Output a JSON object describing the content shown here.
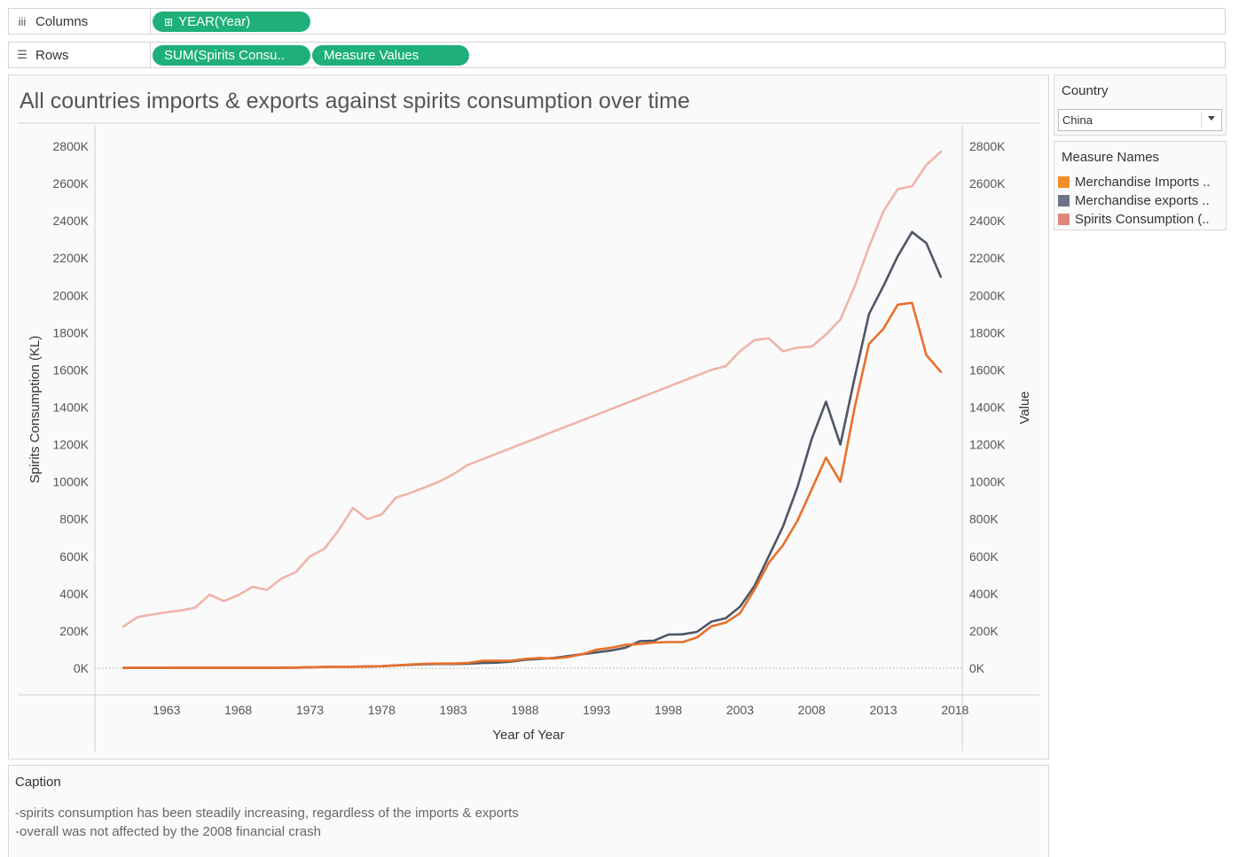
{
  "shelves": {
    "columns": {
      "label": "Columns",
      "icon": "iii",
      "pills": [
        "YEAR(Year)"
      ]
    },
    "rows": {
      "label": "Rows",
      "icon": "☰",
      "pills": [
        "SUM(Spirits Consu..",
        "Measure Values"
      ]
    }
  },
  "filter": {
    "title": "Country",
    "selected": "China"
  },
  "legend": {
    "title": "Measure Names",
    "items": [
      {
        "label": "Merchandise Imports ..",
        "color": "#f28e2b"
      },
      {
        "label": "Merchandise exports ..",
        "color": "#6c7385"
      },
      {
        "label": "Spirits Consumption (..",
        "color": "#e2867d"
      }
    ]
  },
  "caption": {
    "title": "Caption",
    "lines": [
      "-spirits consumption has been steadily increasing, regardless of the imports & exports",
      "-overall was not affected by the 2008 financial crash"
    ]
  },
  "chart_data": {
    "type": "line",
    "title": "All countries imports & exports against spirits consumption over time",
    "xlabel": "Year of Year",
    "ylabel_left": "Spirits Consumption (KL)",
    "ylabel_right": "Value",
    "xlim": [
      1958,
      2018.5
    ],
    "ylim": [
      0,
      2800
    ],
    "y_unit_suffix": "K",
    "x_ticks": [
      1963,
      1968,
      1973,
      1978,
      1983,
      1988,
      1993,
      1998,
      2003,
      2008,
      2013,
      2018
    ],
    "y_ticks": [
      0,
      200,
      400,
      600,
      800,
      1000,
      1200,
      1400,
      1600,
      1800,
      2000,
      2200,
      2400,
      2600,
      2800
    ],
    "x": [
      1960,
      1961,
      1962,
      1963,
      1964,
      1965,
      1966,
      1967,
      1968,
      1969,
      1970,
      1971,
      1972,
      1973,
      1974,
      1975,
      1976,
      1977,
      1978,
      1979,
      1980,
      1981,
      1982,
      1983,
      1984,
      1985,
      1986,
      1987,
      1988,
      1989,
      1990,
      1991,
      1992,
      1993,
      1994,
      1995,
      1996,
      1997,
      1998,
      1999,
      2000,
      2001,
      2002,
      2003,
      2004,
      2005,
      2006,
      2007,
      2008,
      2009,
      2010,
      2011,
      2012,
      2013,
      2014,
      2015,
      2016,
      2017
    ],
    "series": [
      {
        "name": "Spirits Consumption (..",
        "color": "#f0b3aa",
        "values": [
          225,
          275,
          288,
          300,
          310,
          325,
          395,
          360,
          392,
          437,
          420,
          480,
          515,
          600,
          640,
          740,
          860,
          800,
          825,
          915,
          940,
          970,
          1000,
          1040,
          1090,
          1120,
          1150,
          1180,
          1210,
          1240,
          1270,
          1300,
          1330,
          1360,
          1390,
          1420,
          1450,
          1480,
          1510,
          1540,
          1570,
          1600,
          1620,
          1700,
          1760,
          1770,
          1700,
          1720,
          1725,
          1790,
          1870,
          2050,
          2260,
          2450,
          2570,
          2585,
          2700,
          2770
        ]
      },
      {
        "name": "Merchandise exports ..",
        "color": "#4e5666",
        "values": [
          2,
          2,
          2,
          2,
          2,
          2,
          2,
          2,
          2,
          2,
          2,
          3,
          3,
          5,
          7,
          8,
          8,
          9,
          11,
          15,
          18,
          22,
          23,
          23,
          24,
          28,
          30,
          35,
          45,
          50,
          55,
          65,
          75,
          85,
          95,
          110,
          145,
          148,
          180,
          182,
          195,
          250,
          268,
          330,
          440,
          600,
          760,
          970,
          1230,
          1430,
          1200,
          1560,
          1900,
          2050,
          2210,
          2340,
          2280,
          2100
        ]
      },
      {
        "name": "Merchandise Imports ..",
        "color": "#e8702b",
        "values": [
          2,
          2,
          2,
          2,
          3,
          3,
          3,
          3,
          3,
          3,
          3,
          3,
          4,
          5,
          6,
          8,
          8,
          9,
          11,
          15,
          20,
          24,
          25,
          25,
          28,
          40,
          40,
          40,
          50,
          55,
          52,
          60,
          75,
          100,
          110,
          125,
          130,
          138,
          140,
          140,
          165,
          225,
          245,
          295,
          420,
          565,
          660,
          790,
          960,
          1130,
          1000,
          1400,
          1740,
          1820,
          1950,
          1960,
          1680,
          1590
        ]
      }
    ],
    "grid": false,
    "legend_position": "right"
  }
}
